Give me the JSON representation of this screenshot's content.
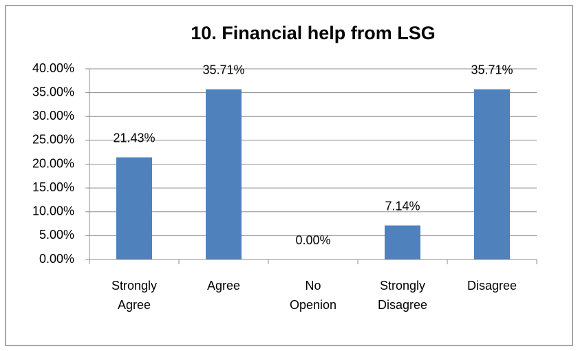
{
  "chart_data": {
    "type": "bar",
    "title": "10. Financial help from LSG",
    "categories": [
      "Strongly Agree",
      "Agree",
      "No Openion",
      "Strongly Disagree",
      "Disagree"
    ],
    "values": [
      21.43,
      35.71,
      0,
      7.14,
      35.71
    ],
    "value_labels": [
      "21.43%",
      "35.71%",
      "0.00%",
      "7.14%",
      "35.71%"
    ],
    "color": "#4f81bd",
    "ylim": [
      0,
      40
    ],
    "yticks": [
      {
        "value": 0,
        "label": "0.00%"
      },
      {
        "value": 5,
        "label": "5.00%"
      },
      {
        "value": 10,
        "label": "10.00%"
      },
      {
        "value": 15,
        "label": "15.00%"
      },
      {
        "value": 20,
        "label": "20.00%"
      },
      {
        "value": 25,
        "label": "25.00%"
      },
      {
        "value": 30,
        "label": "30.00%"
      },
      {
        "value": 35,
        "label": "35.00%"
      },
      {
        "value": 40,
        "label": "40.00%"
      }
    ],
    "grid": true
  }
}
